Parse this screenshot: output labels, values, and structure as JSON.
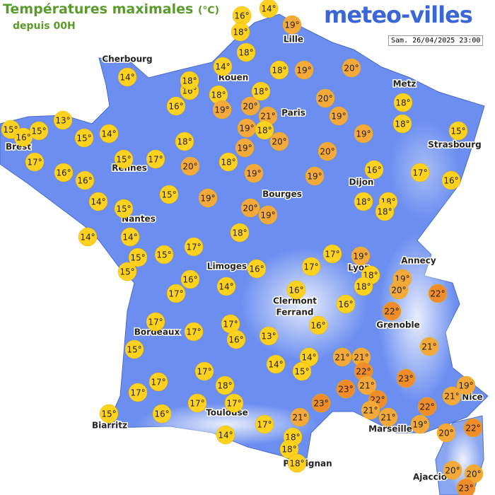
{
  "header": {
    "title": "Températures maximales",
    "unit": "(°C)",
    "subtitle": "depuis 00H",
    "logo": "meteo-villes",
    "timestamp": "Sam. 26/04/2025 23:00"
  },
  "cities": [
    {
      "lines": [
        "Lille"
      ]
    },
    {
      "lines": [
        "Cherbourg"
      ]
    },
    {
      "lines": [
        "Rouen"
      ]
    },
    {
      "lines": [
        "Paris"
      ]
    },
    {
      "lines": [
        "Metz"
      ]
    },
    {
      "lines": [
        "Strasbourg"
      ]
    },
    {
      "lines": [
        "Brest"
      ]
    },
    {
      "lines": [
        "Rennes"
      ]
    },
    {
      "lines": [
        "Dijon"
      ]
    },
    {
      "lines": [
        "Bourges"
      ]
    },
    {
      "lines": [
        "Nantes"
      ]
    },
    {
      "lines": [
        "Annecy"
      ]
    },
    {
      "lines": [
        "Lyon"
      ]
    },
    {
      "lines": [
        "Limoges"
      ]
    },
    {
      "lines": [
        "Clermont",
        "Ferrand"
      ]
    },
    {
      "lines": [
        "Grenoble"
      ]
    },
    {
      "lines": [
        "Bordeaux"
      ]
    },
    {
      "lines": [
        "Toulouse"
      ]
    },
    {
      "lines": [
        "Biarritz"
      ]
    },
    {
      "lines": [
        "Marseille"
      ]
    },
    {
      "lines": [
        "Nice"
      ]
    },
    {
      "lines": [
        "Perpignan"
      ]
    },
    {
      "lines": [
        "Ajaccio"
      ]
    }
  ],
  "temperatures": [
    "16°",
    "14°",
    "18°",
    "19°",
    "18°",
    "14°",
    "14°",
    "16°",
    "18°",
    "18°",
    "19°",
    "20°",
    "18°",
    "18°",
    "16°",
    "19°",
    "20°",
    "21°",
    "20°",
    "18°",
    "13°",
    "15°",
    "16°",
    "15°",
    "19°",
    "19°",
    "18°",
    "18°",
    "15°",
    "14°",
    "20°",
    "19°",
    "15°",
    "18°",
    "19°",
    "20°",
    "15°",
    "17°",
    "17°",
    "18°",
    "20°",
    "16°",
    "16°",
    "19°",
    "19°",
    "16°",
    "17°",
    "16°",
    "15°",
    "19°",
    "14°",
    "15°",
    "20°",
    "19°",
    "18°",
    "18°",
    "18°",
    "14°",
    "14°",
    "18°",
    "17°",
    "15°",
    "15°",
    "15°",
    "17°",
    "19°",
    "16°",
    "17°",
    "18°",
    "19°",
    "16°",
    "14°",
    "18°",
    "20°",
    "16°",
    "17°",
    "22°",
    "16°",
    "22°",
    "17°",
    "17°",
    "16°",
    "17°",
    "16°",
    "13°",
    "15°",
    "21°",
    "14°",
    "21°",
    "21°",
    "14°",
    "15°",
    "22°",
    "17°",
    "23°",
    "17°",
    "18°",
    "23°",
    "21°",
    "19°",
    "17°",
    "17°",
    "17°",
    "23°",
    "22°",
    "21°",
    "21°",
    "22°",
    "15°",
    "16°",
    "21°",
    "21°",
    "17°",
    "19°",
    "22°",
    "14°",
    "18°",
    "20°",
    "18°",
    "18°",
    "20°",
    "20°",
    "23°"
  ]
}
